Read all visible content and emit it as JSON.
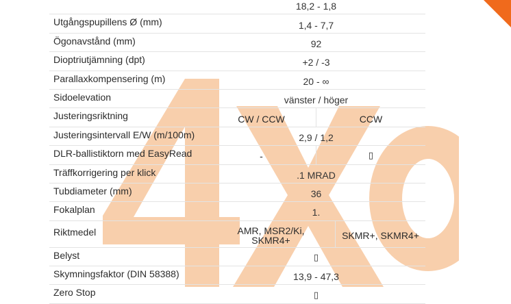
{
  "rows": [
    {
      "label": "",
      "value": "18,2 - 1,8"
    },
    {
      "label": "Utgångspupillens Ø (mm)",
      "value": "1,4 - 7,7"
    },
    {
      "label": "Ögonavstånd (mm)",
      "value": "92"
    },
    {
      "label": "Dioptriutjämning (dpt)",
      "value": "+2 / -3"
    },
    {
      "label": "Parallaxkompensering (m)",
      "value": "20 - ∞"
    },
    {
      "label": "Sidoelevation",
      "value": "vänster / höger"
    },
    {
      "label": "Justeringsriktning",
      "left": "CW / CCW",
      "right": "CCW"
    },
    {
      "label": "Justeringsintervall E/W (m/100m)",
      "value": "2,9 / 1,2"
    },
    {
      "label": "DLR-ballistiktorn med EasyRead",
      "left": "-",
      "right": "▯"
    },
    {
      "label": "Träffkorrigering per klick",
      "value": ".1 MRAD"
    },
    {
      "label": "Tubdiameter (mm)",
      "value": "36"
    },
    {
      "label": "Fokalplan",
      "value": "1."
    },
    {
      "label": "Riktmedel",
      "left": "AMR, MSR2/Ki, SKMR4+",
      "right": "SKMR+, SKMR4+"
    },
    {
      "label": "Belyst",
      "value": "▯"
    },
    {
      "label": "Skymningsfaktor (DIN 58388)",
      "value": "13,9 - 47,3"
    },
    {
      "label": "Zero Stop",
      "value": "▯"
    }
  ],
  "watermark": {
    "text": "4X",
    "color": "#f7c79e"
  },
  "colors": {
    "accent": "#f06a1c",
    "divider": "#e3e3e3"
  }
}
